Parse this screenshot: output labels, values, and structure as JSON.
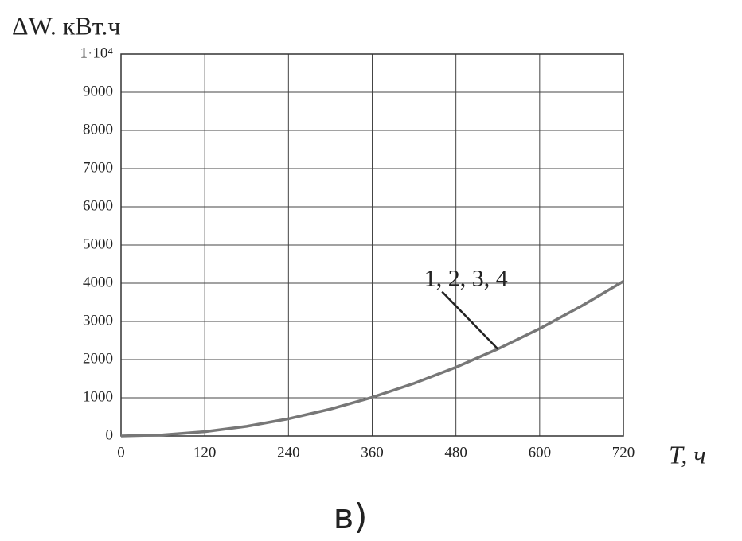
{
  "chart_data": {
    "type": "line",
    "y_label": "ΔW. кВт.ч",
    "x_label": "T, ч",
    "subtitle": "в)",
    "x": [
      0,
      60,
      120,
      180,
      240,
      300,
      360,
      420,
      480,
      540,
      600,
      660,
      720
    ],
    "series": [
      {
        "name": "1, 2, 3, 4",
        "color": "#777777",
        "values": [
          0,
          28,
          112,
          253,
          450,
          703,
          1012,
          1378,
          1800,
          2278,
          2812,
          3403,
          4050
        ]
      }
    ],
    "xlim": [
      0,
      720
    ],
    "xticks": [
      0,
      120,
      240,
      360,
      480,
      600,
      720
    ],
    "ylim": [
      0,
      10000
    ],
    "yticks": [
      0,
      1000,
      2000,
      3000,
      4000,
      5000,
      6000,
      7000,
      8000,
      9000,
      {
        "value": 10000,
        "label": "1·10⁴"
      }
    ],
    "grid": true
  }
}
